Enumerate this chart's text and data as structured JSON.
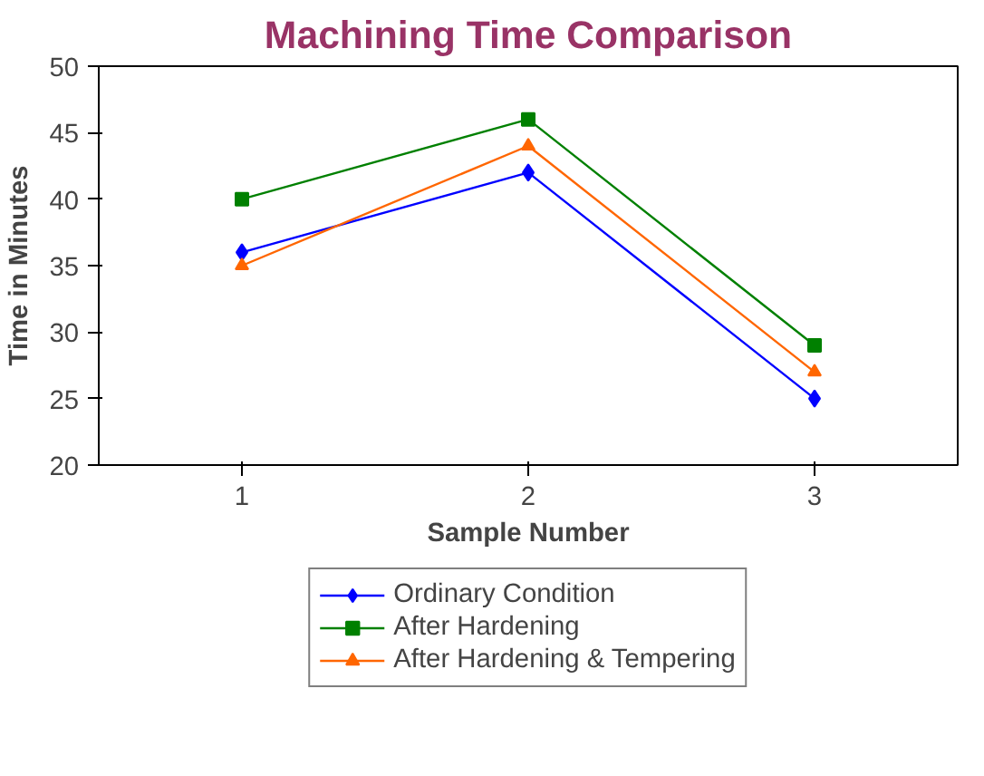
{
  "chart_data": {
    "type": "line",
    "title": "Machining Time Comparison",
    "xlabel": "Sample Number",
    "ylabel": "Time in Minutes",
    "categories": [
      "1",
      "2",
      "3"
    ],
    "series": [
      {
        "name": "Ordinary Condition",
        "color": "#0000ff",
        "marker": "diamond",
        "values": [
          36,
          42,
          25
        ]
      },
      {
        "name": "After Hardening",
        "color": "#008000",
        "marker": "square",
        "values": [
          40,
          46,
          29
        ]
      },
      {
        "name": "After Hardening & Tempering",
        "color": "#ff6600",
        "marker": "triangle",
        "values": [
          35,
          44,
          27
        ]
      }
    ],
    "ylim": [
      20,
      50
    ],
    "yticks": [
      20,
      25,
      30,
      35,
      40,
      45,
      50
    ],
    "grid": false,
    "legend": "bottom",
    "line_style": "solid"
  }
}
